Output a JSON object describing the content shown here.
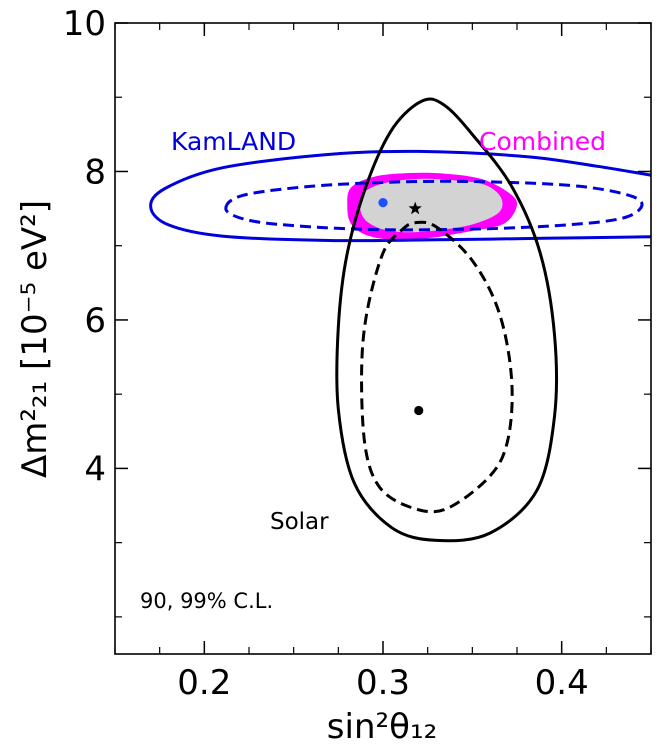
{
  "chart_data": {
    "type": "contour",
    "xlabel": "sin²θ₁₂",
    "ylabel": "Δm²₂₁ [10⁻⁵ eV²]",
    "xlim": [
      0.15,
      0.45
    ],
    "ylim": [
      1.5,
      10.0
    ],
    "x_ticks_major": [
      0.2,
      0.3,
      0.4
    ],
    "x_tick_labels": [
      "0.2",
      "0.3",
      "0.4"
    ],
    "y_ticks_major": [
      4,
      6,
      8,
      10
    ],
    "y_tick_labels": [
      "4",
      "6",
      "8",
      "10"
    ],
    "grid": false,
    "annotations": {
      "kamland": "KamLAND",
      "combined": "Combined",
      "solar": "Solar",
      "cl": "90, 99% C.L."
    },
    "colors": {
      "kamland": "#0000dd",
      "combined_99": "#ff00ff",
      "combined_90": "#d3d3d3",
      "solar": "#000000"
    },
    "best_fit_points": [
      {
        "label": "KamLAND",
        "x": 0.3,
        "y": 7.58,
        "marker": "dot",
        "color": "#1f4fff"
      },
      {
        "label": "Combined",
        "x": 0.318,
        "y": 7.5,
        "marker": "star",
        "color": "#000000"
      },
      {
        "label": "Solar",
        "x": 0.32,
        "y": 4.78,
        "marker": "dot",
        "color": "#000000"
      }
    ],
    "contours": [
      {
        "name": "Combined 99%",
        "color": "#ff00ff",
        "fill": true,
        "points": [
          [
            0.28,
            7.52
          ],
          [
            0.282,
            7.78
          ],
          [
            0.295,
            7.93
          ],
          [
            0.315,
            7.98
          ],
          [
            0.335,
            7.97
          ],
          [
            0.355,
            7.9
          ],
          [
            0.37,
            7.72
          ],
          [
            0.375,
            7.55
          ],
          [
            0.368,
            7.3
          ],
          [
            0.35,
            7.2
          ],
          [
            0.325,
            7.1
          ],
          [
            0.305,
            7.08
          ],
          [
            0.29,
            7.15
          ],
          [
            0.282,
            7.3
          ]
        ]
      },
      {
        "name": "Combined 90%",
        "color": "#d3d3d3",
        "fill": true,
        "points": [
          [
            0.287,
            7.55
          ],
          [
            0.29,
            7.73
          ],
          [
            0.302,
            7.85
          ],
          [
            0.32,
            7.9
          ],
          [
            0.34,
            7.88
          ],
          [
            0.357,
            7.82
          ],
          [
            0.366,
            7.65
          ],
          [
            0.365,
            7.45
          ],
          [
            0.352,
            7.3
          ],
          [
            0.335,
            7.22
          ],
          [
            0.315,
            7.18
          ],
          [
            0.3,
            7.22
          ],
          [
            0.29,
            7.35
          ]
        ]
      },
      {
        "name": "KamLAND 90%",
        "color": "#0000dd",
        "fill": false,
        "dashed": true,
        "points": [
          [
            0.212,
            7.5
          ],
          [
            0.222,
            7.68
          ],
          [
            0.26,
            7.8
          ],
          [
            0.31,
            7.86
          ],
          [
            0.36,
            7.86
          ],
          [
            0.41,
            7.8
          ],
          [
            0.44,
            7.66
          ],
          [
            0.444,
            7.5
          ],
          [
            0.43,
            7.35
          ],
          [
            0.39,
            7.26
          ],
          [
            0.34,
            7.22
          ],
          [
            0.29,
            7.22
          ],
          [
            0.245,
            7.28
          ],
          [
            0.222,
            7.36
          ]
        ]
      },
      {
        "name": "KamLAND 99%",
        "color": "#0000dd",
        "fill": false,
        "dashed": false,
        "closed": false,
        "points": [
          [
            0.45,
            7.95
          ],
          [
            0.42,
            8.07
          ],
          [
            0.38,
            8.2
          ],
          [
            0.32,
            8.27
          ],
          [
            0.27,
            8.23
          ],
          [
            0.21,
            8.05
          ],
          [
            0.178,
            7.77
          ],
          [
            0.17,
            7.52
          ],
          [
            0.18,
            7.28
          ],
          [
            0.21,
            7.13
          ],
          [
            0.27,
            7.07
          ],
          [
            0.33,
            7.08
          ],
          [
            0.39,
            7.1
          ],
          [
            0.45,
            7.12
          ]
        ]
      },
      {
        "name": "Solar 90%",
        "color": "#000000",
        "fill": false,
        "dashed": true,
        "points": [
          [
            0.318,
            7.31
          ],
          [
            0.33,
            7.25
          ],
          [
            0.35,
            6.8
          ],
          [
            0.365,
            6.1
          ],
          [
            0.372,
            5.2
          ],
          [
            0.37,
            4.4
          ],
          [
            0.36,
            3.9
          ],
          [
            0.335,
            3.45
          ],
          [
            0.315,
            3.48
          ],
          [
            0.298,
            3.75
          ],
          [
            0.29,
            4.3
          ],
          [
            0.288,
            5.3
          ],
          [
            0.291,
            6.1
          ],
          [
            0.3,
            6.9
          ],
          [
            0.31,
            7.2
          ]
        ]
      },
      {
        "name": "Solar 99%",
        "color": "#000000",
        "fill": false,
        "dashed": false,
        "points": [
          [
            0.322,
            8.95
          ],
          [
            0.334,
            8.9
          ],
          [
            0.35,
            8.5
          ],
          [
            0.372,
            7.8
          ],
          [
            0.388,
            6.9
          ],
          [
            0.396,
            5.8
          ],
          [
            0.396,
            4.7
          ],
          [
            0.386,
            3.7
          ],
          [
            0.36,
            3.13
          ],
          [
            0.33,
            3.03
          ],
          [
            0.305,
            3.2
          ],
          [
            0.284,
            3.8
          ],
          [
            0.275,
            4.8
          ],
          [
            0.275,
            5.9
          ],
          [
            0.28,
            6.9
          ],
          [
            0.292,
            7.9
          ],
          [
            0.306,
            8.6
          ]
        ]
      }
    ]
  }
}
